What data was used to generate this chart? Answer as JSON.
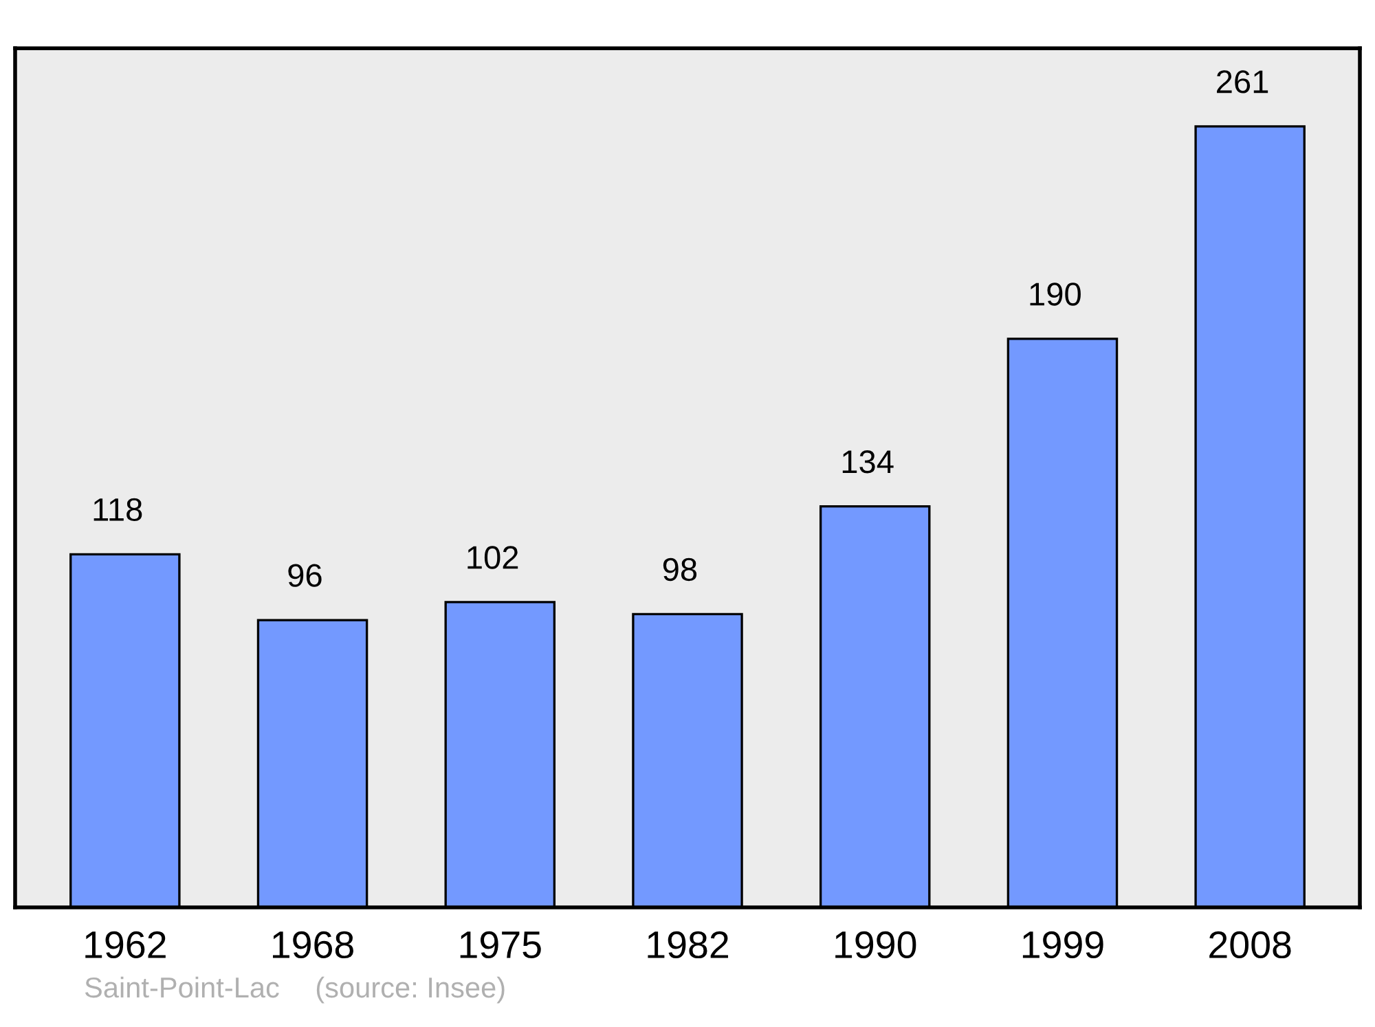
{
  "chart_data": {
    "type": "bar",
    "categories": [
      "1962",
      "1968",
      "1975",
      "1982",
      "1990",
      "1999",
      "2008"
    ],
    "values": [
      118,
      96,
      102,
      98,
      134,
      190,
      261
    ],
    "color": "#7399ff",
    "data_labels": true,
    "grid": false,
    "annotations": [
      "Saint-Point-Lac",
      "(source: Insee)"
    ]
  }
}
